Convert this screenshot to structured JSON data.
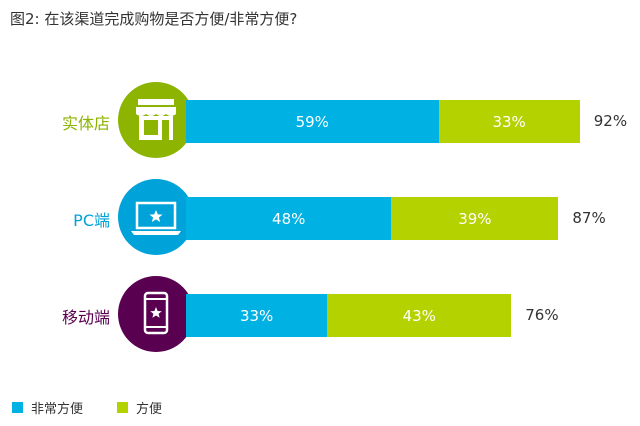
{
  "title": "图2: 在该渠道完成购物是否方便/非常方便?",
  "colors": {
    "series_a": "#00b1e3",
    "series_b": "#b3d200"
  },
  "chart_data": {
    "type": "bar",
    "stacked": true,
    "orientation": "horizontal",
    "categories": [
      "实体店",
      "PC端",
      "移动端"
    ],
    "category_colors": [
      "#8cb400",
      "#00a3d9",
      "#5a0050"
    ],
    "category_icons": [
      "store-icon",
      "laptop-icon",
      "smartphone-icon"
    ],
    "series": [
      {
        "name": "非常方便",
        "values": [
          59,
          48,
          33
        ],
        "labels": [
          "59%",
          "48%",
          "33%"
        ],
        "color": "#00b1e3"
      },
      {
        "name": "方便",
        "values": [
          33,
          39,
          43
        ],
        "labels": [
          "33%",
          "39%",
          "43%"
        ],
        "color": "#b3d200"
      }
    ],
    "totals": [
      "92%",
      "87%",
      "76%"
    ],
    "legend": [
      "非常方便",
      "方便"
    ],
    "legend_position": "bottom-left",
    "xlim": [
      0,
      100
    ],
    "grid": false
  }
}
